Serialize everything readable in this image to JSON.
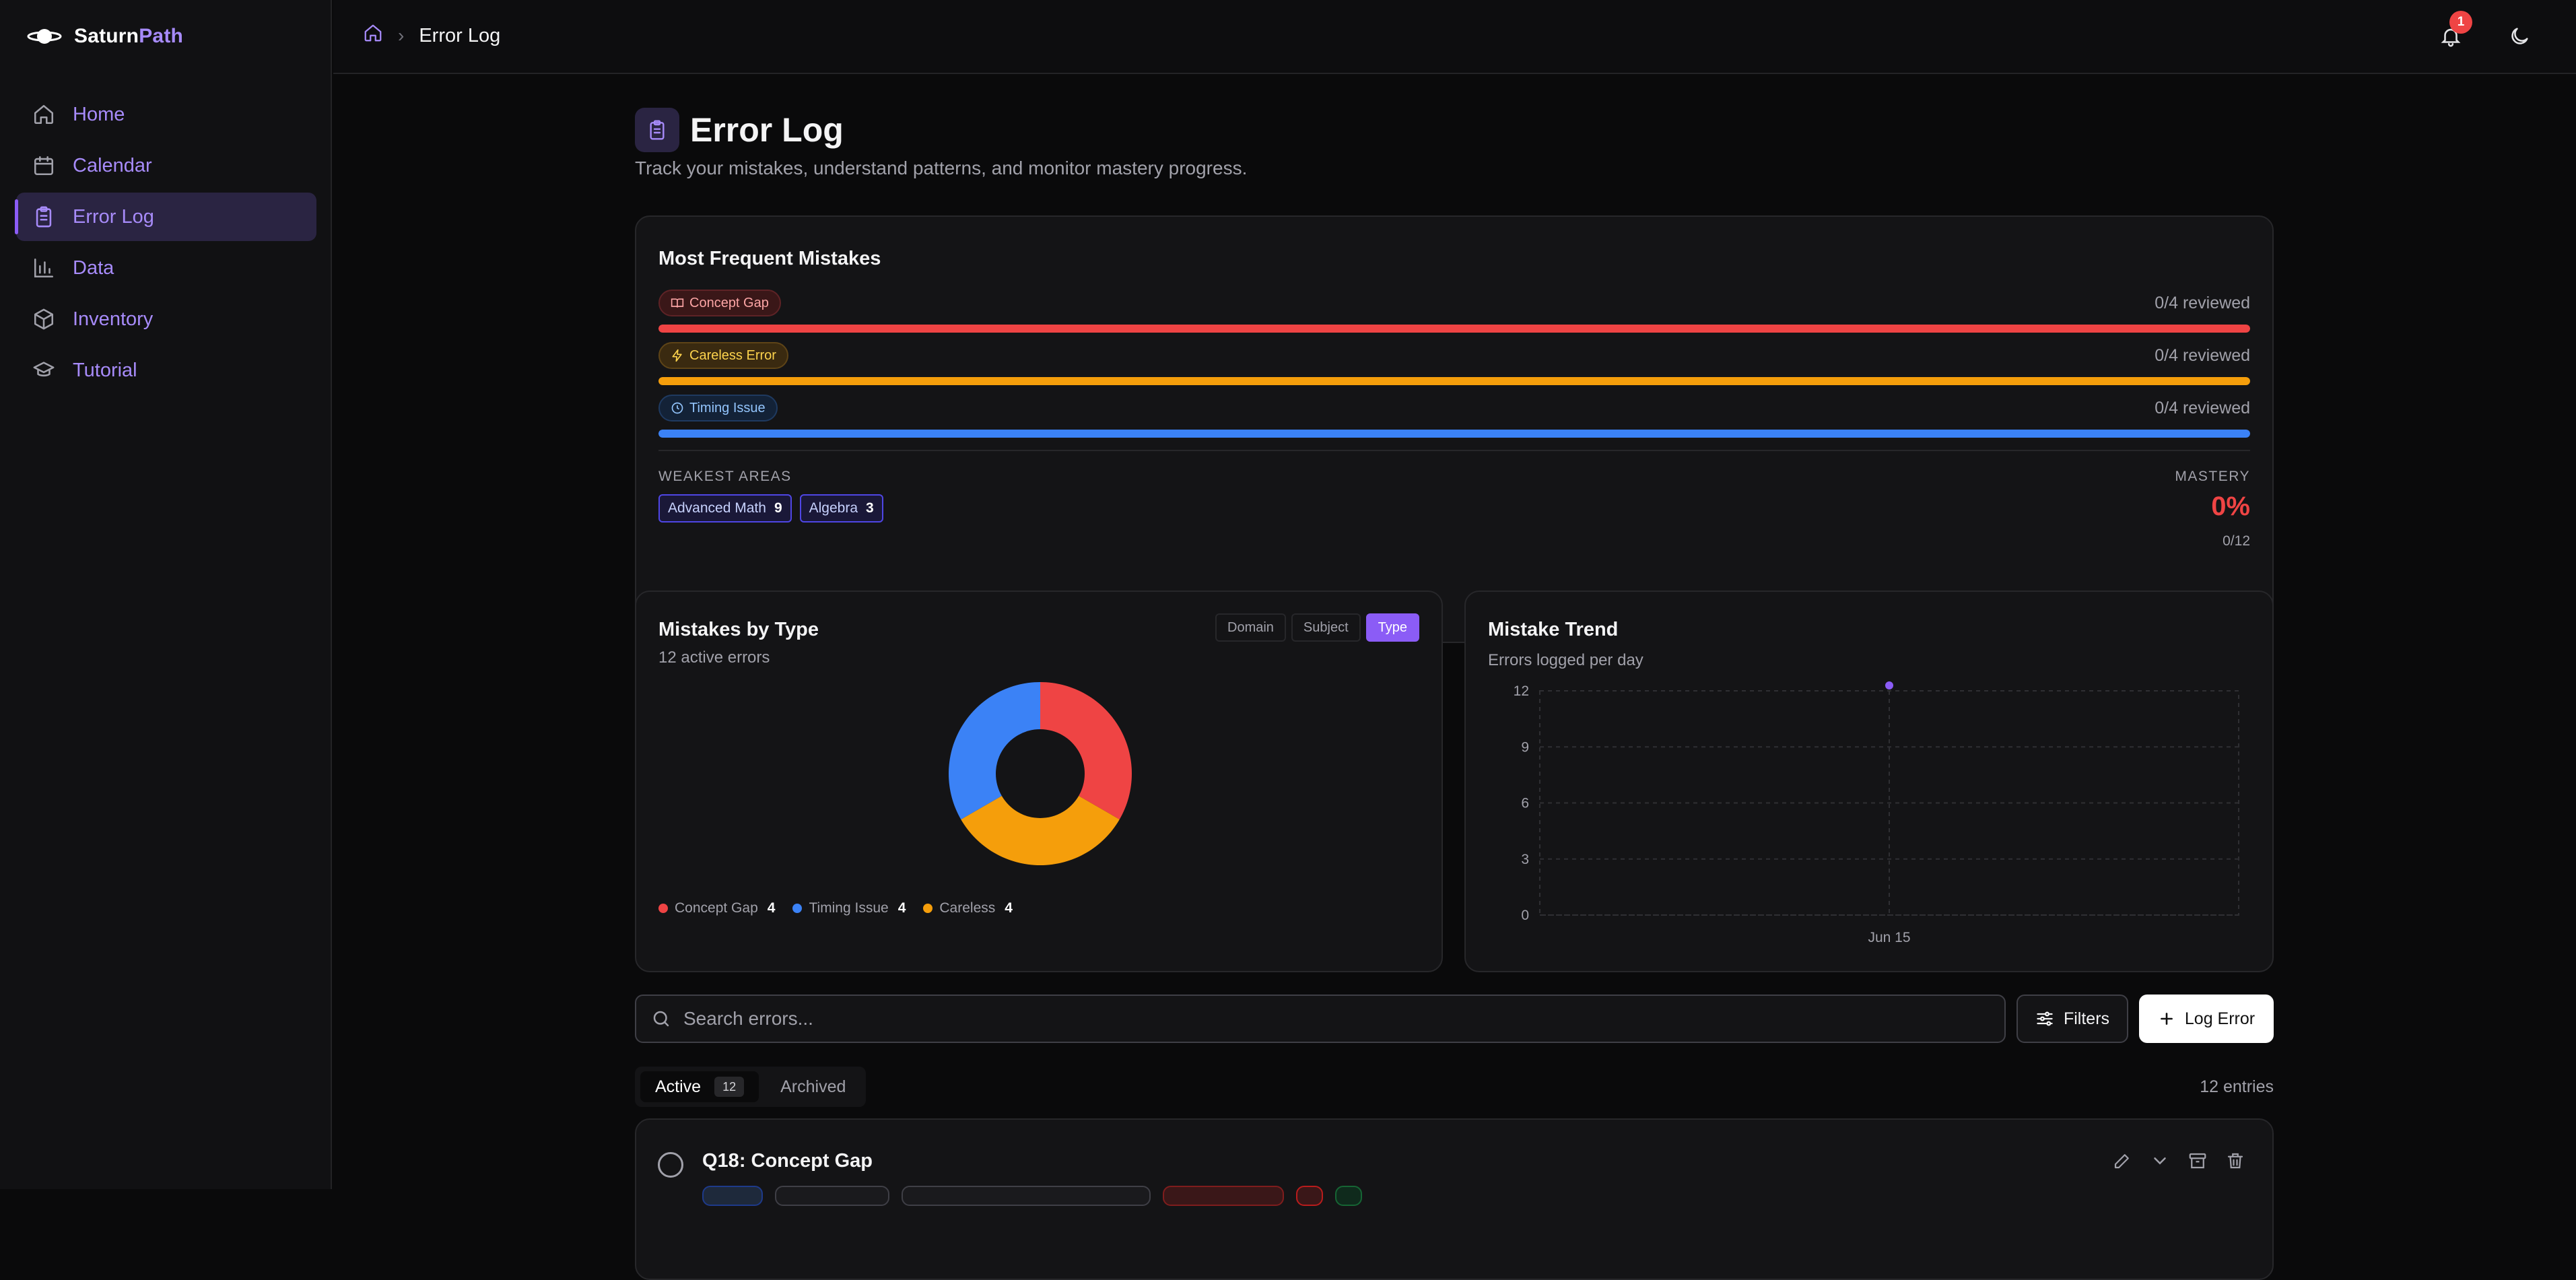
{
  "brand": {
    "name_part1": "Saturn",
    "name_part2": "Path"
  },
  "sidebar": {
    "items": [
      {
        "label": "Home",
        "icon": "home-icon"
      },
      {
        "label": "Calendar",
        "icon": "calendar-icon"
      },
      {
        "label": "Error Log",
        "icon": "clipboard-icon",
        "active": true
      },
      {
        "label": "Data",
        "icon": "bar-chart-icon"
      },
      {
        "label": "Inventory",
        "icon": "box-icon"
      },
      {
        "label": "Tutorial",
        "icon": "graduation-cap-icon"
      }
    ]
  },
  "topbar": {
    "breadcrumb": {
      "current": "Error Log"
    },
    "notifications_count": "1"
  },
  "page": {
    "title": "Error Log",
    "subtitle": "Track your mistakes, understand patterns, and monitor mastery progress."
  },
  "most_frequent": {
    "title": "Most Frequent Mistakes",
    "rows": [
      {
        "label": "Concept Gap",
        "reviewed": "0/4 reviewed",
        "color": "#ef4444",
        "fill": 1.0
      },
      {
        "label": "Careless Error",
        "reviewed": "0/4 reviewed",
        "color": "#f59e0b",
        "fill": 1.0
      },
      {
        "label": "Timing Issue",
        "reviewed": "0/4 reviewed",
        "color": "#3b82f6",
        "fill": 1.0
      }
    ],
    "weakest_label": "WEAKEST AREAS",
    "weakest": [
      {
        "name": "Advanced Math",
        "count": "9"
      },
      {
        "name": "Algebra",
        "count": "3"
      }
    ],
    "mastery_label": "MASTERY",
    "mastery_value": "0%",
    "mastery_sub": "0/12"
  },
  "mistakes_by_type": {
    "title": "Mistakes by Type",
    "subtitle": "12 active errors",
    "segments": [
      "Domain",
      "Subject",
      "Type"
    ],
    "selected_segment": "Type",
    "legend": [
      {
        "label": "Concept Gap",
        "value": "4",
        "color": "#ef4444"
      },
      {
        "label": "Timing Issue",
        "value": "4",
        "color": "#3b82f6"
      },
      {
        "label": "Careless",
        "value": "4",
        "color": "#f59e0b"
      }
    ]
  },
  "trend": {
    "title": "Mistake Trend",
    "subtitle": "Errors logged per day"
  },
  "search": {
    "placeholder": "Search errors..."
  },
  "buttons": {
    "filters": "Filters",
    "log_error": "Log Error"
  },
  "tabs": {
    "active_label": "Active",
    "active_count": "12",
    "archived_label": "Archived",
    "entries": "12 entries"
  },
  "errors": [
    {
      "title": "Q18: Concept Gap"
    }
  ],
  "chart_data": [
    {
      "type": "pie",
      "title": "Mistakes by Type",
      "categories": [
        "Concept Gap",
        "Careless",
        "Timing Issue"
      ],
      "values": [
        4,
        4,
        4
      ],
      "colors": [
        "#ef4444",
        "#f59e0b",
        "#3b82f6"
      ],
      "donut": true
    },
    {
      "type": "scatter",
      "title": "Mistake Trend",
      "x": [
        "Jun 15"
      ],
      "y": [
        12
      ],
      "ylim": [
        0,
        12
      ],
      "yticks": [
        0,
        3,
        6,
        9,
        12
      ],
      "xticks": [
        "Jun 15"
      ],
      "grid": true,
      "color": "#8b5cf6"
    }
  ]
}
